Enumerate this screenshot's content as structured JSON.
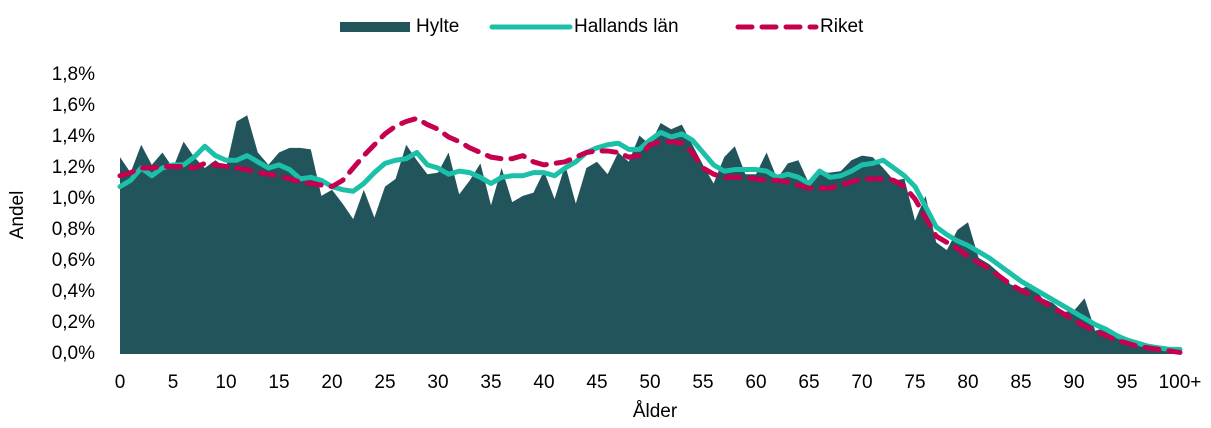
{
  "chart_data": {
    "type": "area_lines",
    "x_label": "Ålder",
    "y_label": "Andel",
    "legend": "top",
    "categories": [
      "0",
      null,
      null,
      null,
      null,
      "5",
      null,
      null,
      null,
      null,
      "10",
      null,
      null,
      null,
      null,
      "15",
      null,
      null,
      null,
      null,
      "20",
      null,
      null,
      null,
      null,
      "25",
      null,
      null,
      null,
      null,
      "30",
      null,
      null,
      null,
      null,
      "35",
      null,
      null,
      null,
      null,
      "40",
      null,
      null,
      null,
      null,
      "45",
      null,
      null,
      null,
      null,
      "50",
      null,
      null,
      null,
      null,
      "55",
      null,
      null,
      null,
      null,
      "60",
      null,
      null,
      null,
      null,
      "65",
      null,
      null,
      null,
      null,
      "70",
      null,
      null,
      null,
      null,
      "75",
      null,
      null,
      null,
      null,
      "80",
      null,
      null,
      null,
      null,
      "85",
      null,
      null,
      null,
      null,
      "90",
      null,
      null,
      null,
      null,
      "95",
      null,
      null,
      null,
      null,
      "100+"
    ],
    "ylim": [
      0,
      1.8
    ],
    "yticks": [
      {
        "value": 0,
        "label": "0,0%"
      },
      {
        "value": 0.2,
        "label": "0,2%"
      },
      {
        "value": 0.4,
        "label": "0,4%"
      },
      {
        "value": 0.6,
        "label": "0,6%"
      },
      {
        "value": 0.8,
        "label": "0,8%"
      },
      {
        "value": 1.0,
        "label": "1,0%"
      },
      {
        "value": 1.2,
        "label": "1,2%"
      },
      {
        "value": 1.4,
        "label": "1,4%"
      },
      {
        "value": 1.6,
        "label": "1,6%"
      },
      {
        "value": 1.8,
        "label": "1,8%"
      }
    ],
    "series": [
      {
        "name": "Hylte",
        "kind": "area",
        "color": "#21545b",
        "values": [
          1.27,
          1.17,
          1.35,
          1.22,
          1.3,
          1.2,
          1.37,
          1.27,
          1.2,
          1.25,
          1.2,
          1.5,
          1.54,
          1.3,
          1.22,
          1.3,
          1.33,
          1.33,
          1.32,
          1.02,
          1.06,
          0.97,
          0.87,
          1.06,
          0.88,
          1.08,
          1.13,
          1.35,
          1.25,
          1.16,
          1.17,
          1.3,
          1.03,
          1.12,
          1.23,
          0.96,
          1.2,
          0.98,
          1.02,
          1.04,
          1.18,
          1.0,
          1.22,
          0.97,
          1.2,
          1.24,
          1.16,
          1.3,
          1.24,
          1.41,
          1.35,
          1.49,
          1.45,
          1.48,
          1.35,
          1.22,
          1.1,
          1.27,
          1.34,
          1.16,
          1.16,
          1.3,
          1.13,
          1.23,
          1.25,
          1.1,
          1.17,
          1.17,
          1.18,
          1.25,
          1.28,
          1.27,
          1.2,
          1.12,
          1.13,
          0.86,
          1.02,
          0.72,
          0.67,
          0.8,
          0.85,
          0.62,
          0.58,
          0.52,
          0.45,
          0.42,
          0.45,
          0.36,
          0.33,
          0.27,
          0.28,
          0.36,
          0.15,
          0.17,
          0.13,
          0.09,
          0.07,
          0.05,
          0.03,
          0.02,
          0.03
        ]
      },
      {
        "name": "Hallands län",
        "kind": "line",
        "color": "#1cbfa8",
        "values": [
          1.08,
          1.12,
          1.2,
          1.15,
          1.2,
          1.22,
          1.22,
          1.27,
          1.34,
          1.28,
          1.25,
          1.25,
          1.28,
          1.24,
          1.2,
          1.22,
          1.19,
          1.13,
          1.14,
          1.12,
          1.08,
          1.06,
          1.05,
          1.1,
          1.17,
          1.23,
          1.25,
          1.26,
          1.3,
          1.22,
          1.2,
          1.16,
          1.18,
          1.17,
          1.14,
          1.1,
          1.14,
          1.15,
          1.15,
          1.17,
          1.17,
          1.15,
          1.2,
          1.24,
          1.3,
          1.33,
          1.35,
          1.36,
          1.32,
          1.32,
          1.38,
          1.43,
          1.4,
          1.42,
          1.38,
          1.3,
          1.22,
          1.18,
          1.19,
          1.19,
          1.19,
          1.18,
          1.14,
          1.16,
          1.14,
          1.1,
          1.18,
          1.14,
          1.15,
          1.18,
          1.22,
          1.23,
          1.25,
          1.2,
          1.15,
          1.08,
          0.95,
          0.82,
          0.77,
          0.73,
          0.7,
          0.66,
          0.62,
          0.57,
          0.52,
          0.47,
          0.43,
          0.39,
          0.35,
          0.31,
          0.27,
          0.23,
          0.19,
          0.16,
          0.12,
          0.09,
          0.07,
          0.05,
          0.04,
          0.03,
          0.03
        ]
      },
      {
        "name": "Riket",
        "kind": "dashed",
        "color": "#c4004f",
        "values": [
          1.15,
          1.17,
          1.2,
          1.2,
          1.21,
          1.21,
          1.21,
          1.2,
          1.23,
          1.22,
          1.21,
          1.2,
          1.19,
          1.17,
          1.16,
          1.15,
          1.13,
          1.11,
          1.1,
          1.09,
          1.08,
          1.12,
          1.2,
          1.28,
          1.35,
          1.42,
          1.47,
          1.5,
          1.52,
          1.48,
          1.45,
          1.4,
          1.37,
          1.33,
          1.3,
          1.27,
          1.26,
          1.26,
          1.28,
          1.24,
          1.22,
          1.23,
          1.24,
          1.27,
          1.3,
          1.31,
          1.31,
          1.3,
          1.27,
          1.28,
          1.35,
          1.37,
          1.37,
          1.36,
          1.3,
          1.2,
          1.16,
          1.14,
          1.14,
          1.14,
          1.13,
          1.12,
          1.12,
          1.11,
          1.09,
          1.07,
          1.07,
          1.07,
          1.09,
          1.11,
          1.13,
          1.13,
          1.13,
          1.12,
          1.08,
          1.0,
          0.88,
          0.76,
          0.72,
          0.68,
          0.63,
          0.59,
          0.55,
          0.5,
          0.45,
          0.41,
          0.38,
          0.34,
          0.3,
          0.26,
          0.22,
          0.18,
          0.15,
          0.12,
          0.09,
          0.07,
          0.05,
          0.04,
          0.03,
          0.02,
          0.01
        ]
      }
    ]
  }
}
